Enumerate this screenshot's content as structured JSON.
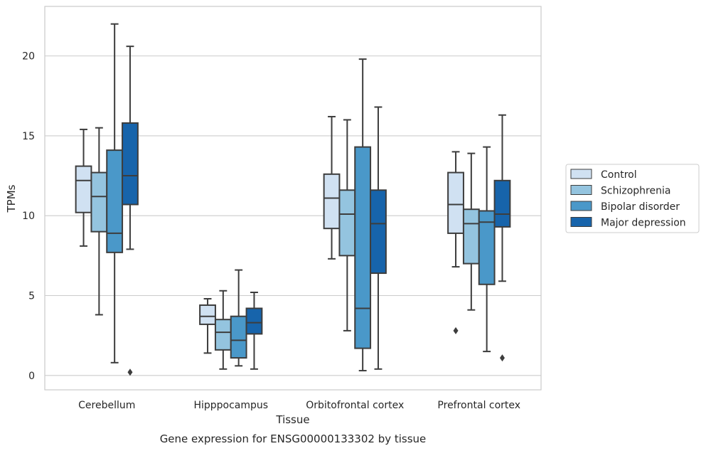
{
  "chart_data": {
    "type": "box",
    "title": "",
    "caption": "Gene expression for ENSG00000133302 by tissue",
    "xlabel": "Tissue",
    "ylabel": "TPMs",
    "ylim": [
      -0.9,
      23.1
    ],
    "yticks": [
      0,
      5,
      10,
      15,
      20
    ],
    "grid": "horizontal",
    "legend_position": "right",
    "categories": [
      "Cerebellum",
      "Hipppocampus",
      "Orbitofrontal cortex",
      "Prefrontal cortex"
    ],
    "series": [
      {
        "name": "Control",
        "color": "#d0e1f2",
        "boxes": [
          {
            "whisker_low": 8.1,
            "q1": 10.2,
            "median": 12.2,
            "q3": 13.1,
            "whisker_high": 15.4,
            "outliers": []
          },
          {
            "whisker_low": 1.4,
            "q1": 3.2,
            "median": 3.7,
            "q3": 4.4,
            "whisker_high": 4.8,
            "outliers": []
          },
          {
            "whisker_low": 7.3,
            "q1": 9.2,
            "median": 11.1,
            "q3": 12.6,
            "whisker_high": 16.2,
            "outliers": []
          },
          {
            "whisker_low": 6.8,
            "q1": 8.9,
            "median": 10.7,
            "q3": 12.7,
            "whisker_high": 14.0,
            "outliers": [
              2.8
            ]
          }
        ]
      },
      {
        "name": "Schizophrenia",
        "color": "#94c4df",
        "boxes": [
          {
            "whisker_low": 3.8,
            "q1": 9.0,
            "median": 11.2,
            "q3": 12.7,
            "whisker_high": 15.5,
            "outliers": []
          },
          {
            "whisker_low": 0.4,
            "q1": 1.6,
            "median": 2.7,
            "q3": 3.5,
            "whisker_high": 5.3,
            "outliers": []
          },
          {
            "whisker_low": 2.8,
            "q1": 7.5,
            "median": 10.1,
            "q3": 11.6,
            "whisker_high": 16.0,
            "outliers": []
          },
          {
            "whisker_low": 4.1,
            "q1": 7.0,
            "median": 9.5,
            "q3": 10.4,
            "whisker_high": 13.9,
            "outliers": []
          }
        ]
      },
      {
        "name": "Bipolar disorder",
        "color": "#4a98c9",
        "boxes": [
          {
            "whisker_low": 0.8,
            "q1": 7.7,
            "median": 8.9,
            "q3": 14.1,
            "whisker_high": 22.0,
            "outliers": []
          },
          {
            "whisker_low": 0.6,
            "q1": 1.1,
            "median": 2.2,
            "q3": 3.7,
            "whisker_high": 6.6,
            "outliers": []
          },
          {
            "whisker_low": 0.3,
            "q1": 1.7,
            "median": 4.2,
            "q3": 14.3,
            "whisker_high": 19.8,
            "outliers": []
          },
          {
            "whisker_low": 1.5,
            "q1": 5.7,
            "median": 9.6,
            "q3": 10.3,
            "whisker_high": 14.3,
            "outliers": []
          }
        ]
      },
      {
        "name": "Major depression",
        "color": "#1764ab",
        "boxes": [
          {
            "whisker_low": 7.9,
            "q1": 10.7,
            "median": 12.5,
            "q3": 15.8,
            "whisker_high": 20.6,
            "outliers": [
              0.2
            ]
          },
          {
            "whisker_low": 0.4,
            "q1": 2.6,
            "median": 3.3,
            "q3": 4.2,
            "whisker_high": 5.2,
            "outliers": []
          },
          {
            "whisker_low": 0.4,
            "q1": 6.4,
            "median": 9.5,
            "q3": 11.6,
            "whisker_high": 16.8,
            "outliers": []
          },
          {
            "whisker_low": 5.9,
            "q1": 9.3,
            "median": 10.1,
            "q3": 12.2,
            "whisker_high": 16.3,
            "outliers": [
              1.1
            ]
          }
        ]
      }
    ],
    "colors": {
      "edge": "#3d3d3d",
      "grid": "#cccccc",
      "frame": "#cccccc"
    }
  }
}
